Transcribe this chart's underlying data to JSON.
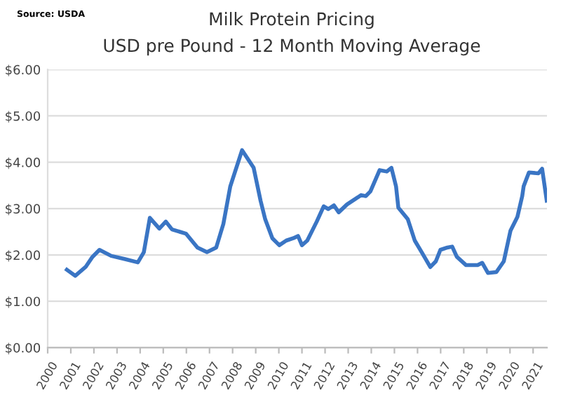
{
  "chart_data": {
    "type": "line",
    "title": "Milk Protein Pricing",
    "subtitle": "USD pre Pound - 12 Month Moving Average",
    "annotations": [
      "Source: USDA"
    ],
    "series": [
      {
        "color": "#3a75c4",
        "x": [
          2000.83,
          2001.19,
          2001.64,
          2001.94,
          2002.24,
          2002.75,
          2003.35,
          2003.9,
          2004.16,
          2004.42,
          2004.83,
          2005.11,
          2005.38,
          2005.98,
          2006.48,
          2006.89,
          2007.29,
          2007.6,
          2007.9,
          2008.41,
          2008.91,
          2009.21,
          2009.41,
          2009.72,
          2010.02,
          2010.32,
          2010.62,
          2010.83,
          2011.0,
          2011.23,
          2011.64,
          2011.94,
          2012.14,
          2012.38,
          2012.59,
          2012.95,
          2013.56,
          2013.76,
          2013.96,
          2014.36,
          2014.67,
          2014.87,
          2015.07,
          2015.17,
          2015.58,
          2015.88,
          2016.18,
          2016.55,
          2016.79,
          2016.99,
          2017.29,
          2017.5,
          2017.7,
          2018.1,
          2018.6,
          2018.8,
          2019.05,
          2019.41,
          2019.73,
          2020.02,
          2020.32,
          2020.53,
          2020.59,
          2020.82,
          2021.23,
          2021.39,
          2021.59
        ],
        "values": [
          1.68,
          1.55,
          1.74,
          1.96,
          2.11,
          1.98,
          1.91,
          1.84,
          2.06,
          2.8,
          2.57,
          2.72,
          2.55,
          2.46,
          2.16,
          2.06,
          2.16,
          2.67,
          3.48,
          4.26,
          3.88,
          3.17,
          2.77,
          2.36,
          2.21,
          2.31,
          2.36,
          2.41,
          2.21,
          2.31,
          2.72,
          3.05,
          2.99,
          3.07,
          2.92,
          3.09,
          3.29,
          3.27,
          3.37,
          3.83,
          3.8,
          3.88,
          3.48,
          3.02,
          2.77,
          2.31,
          2.06,
          1.74,
          1.86,
          2.11,
          2.16,
          2.18,
          1.96,
          1.78,
          1.78,
          1.83,
          1.61,
          1.63,
          1.86,
          2.52,
          2.82,
          3.27,
          3.48,
          3.78,
          3.76,
          3.86,
          3.17
        ]
      }
    ],
    "xlim": [
      2000,
      2021.6
    ],
    "xticks": [
      2000,
      2001,
      2002,
      2003,
      2004,
      2005,
      2006,
      2007,
      2008,
      2009,
      2010,
      2011,
      2012,
      2013,
      2014,
      2015,
      2016,
      2017,
      2018,
      2019,
      2020,
      2021
    ],
    "ylim": [
      0,
      6
    ],
    "yticks": [
      {
        "value": 0,
        "label": "$0.00"
      },
      {
        "value": 1,
        "label": "$1.00"
      },
      {
        "value": 2,
        "label": "$2.00"
      },
      {
        "value": 3,
        "label": "$3.00"
      },
      {
        "value": 4,
        "label": "$4.00"
      },
      {
        "value": 5,
        "label": "$5.00"
      },
      {
        "value": 6,
        "label": "$6.00"
      }
    ],
    "grid": "y",
    "marker": "none",
    "line_style": "solid"
  }
}
